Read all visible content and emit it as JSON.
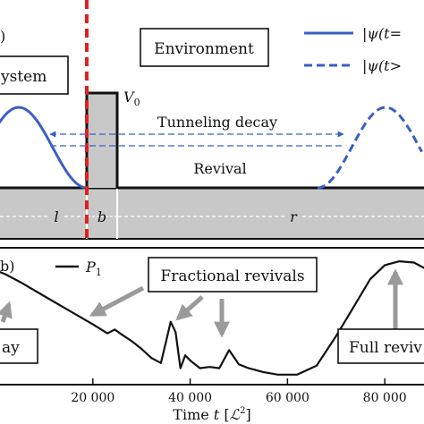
{
  "top_panel": {
    "panel_label": ")",
    "system_label": "ystem",
    "environment_label": "Environment",
    "barrier_height_label": "V",
    "barrier_height_sub": "0",
    "tunneling_label": "Tunneling decay",
    "revival_label": "Revival",
    "region_l": "l",
    "region_b": "b",
    "region_r": "r",
    "legend": [
      {
        "text": "|ψ(t=",
        "style": "solid",
        "color": "#3a5fc8"
      },
      {
        "text": "|ψ(t>",
        "style": "dashed",
        "color": "#3a5fc8"
      }
    ],
    "colors": {
      "wave": "#3a5fc8",
      "barrier": "#c8c8c8",
      "divider": "#e02020"
    }
  },
  "bottom_panel": {
    "panel_label": "b)",
    "legend_label": "P",
    "legend_sub": "1",
    "annotations": {
      "fractional": "Fractional revivals",
      "decay": "ay",
      "full": "Full reviv"
    },
    "arrow_color": "#9a9a9a"
  },
  "chart_data": {
    "type": "line",
    "xlabel": "Time t [ℒ²]",
    "xlabel_parts": {
      "prefix": "Time ",
      "var": "t",
      "bracket_open": " [",
      "unit": "ℒ",
      "sup": "2",
      "bracket_close": "]"
    },
    "x_ticks": [
      "20 000",
      "40 000",
      "60 000",
      "80 000"
    ],
    "x_tick_values": [
      20000,
      40000,
      60000,
      80000
    ],
    "xlim": [
      0,
      91000
    ],
    "series": [
      {
        "x": [
          0,
          2000,
          5000,
          10000,
          15000,
          20000,
          23000,
          24500,
          26000,
          28000,
          30000,
          32000,
          34000,
          35000,
          36000,
          37000,
          38000,
          39000,
          40000,
          42000,
          44000,
          46000,
          48000,
          50000,
          52000,
          55000,
          58000,
          62000,
          66000,
          70000,
          74000,
          77000,
          80000,
          83000,
          86000,
          89000,
          91000
        ],
        "y": [
          0.86,
          0.83,
          0.77,
          0.66,
          0.55,
          0.44,
          0.37,
          0.4,
          0.36,
          0.31,
          0.25,
          0.18,
          0.14,
          0.3,
          0.46,
          0.38,
          0.1,
          0.2,
          0.16,
          0.1,
          0.11,
          0.1,
          0.24,
          0.13,
          0.1,
          0.07,
          0.05,
          0.05,
          0.12,
          0.35,
          0.6,
          0.79,
          0.9,
          0.93,
          0.92,
          0.86,
          0.8
        ]
      }
    ]
  }
}
